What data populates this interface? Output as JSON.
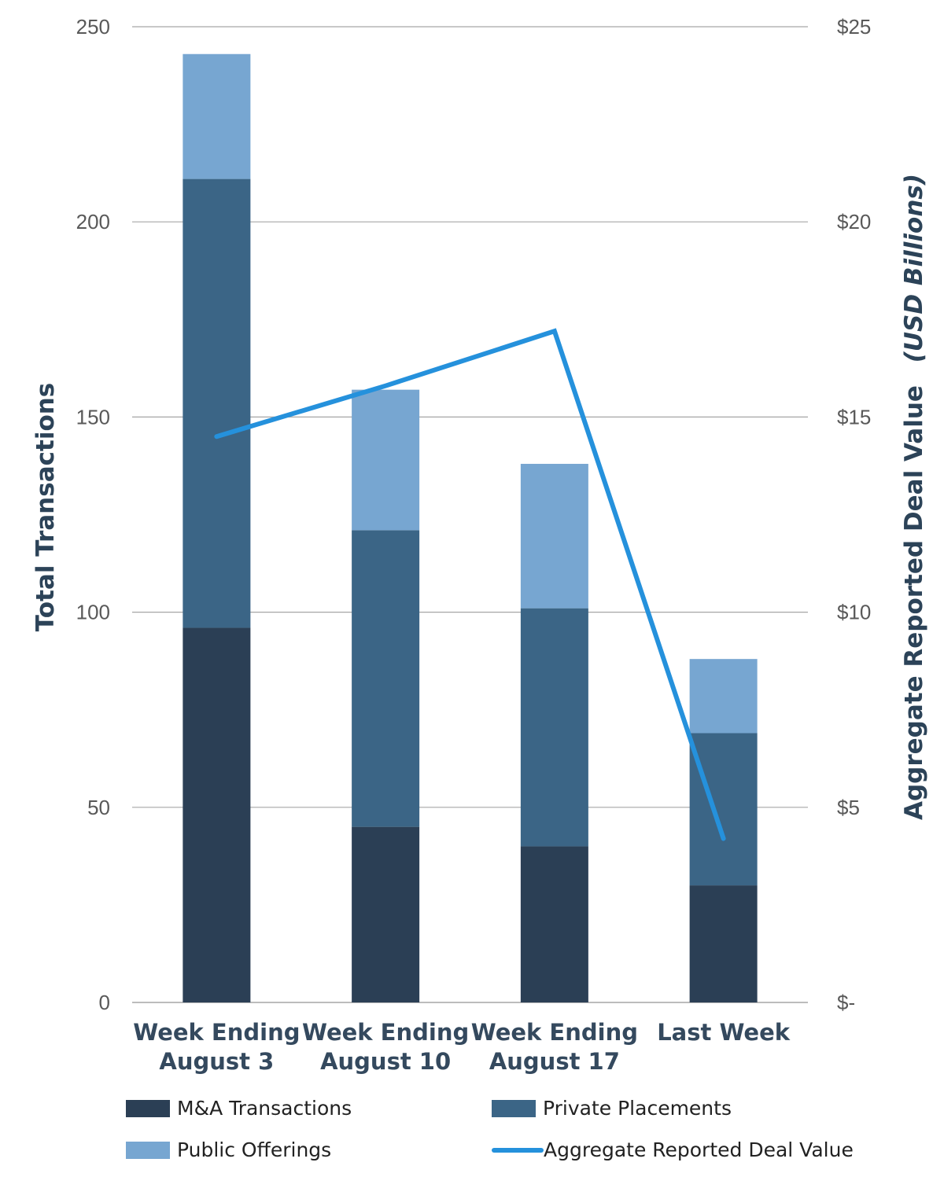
{
  "chart_data": {
    "type": "bar",
    "stacked": true,
    "categories": [
      [
        "Week Ending",
        "August 3"
      ],
      [
        "Week Ending",
        "August 10"
      ],
      [
        "Week Ending",
        "August 17"
      ],
      [
        "Last Week"
      ]
    ],
    "series": [
      {
        "name": "M&A Transactions",
        "type": "bar",
        "axis": "left",
        "color": "#2b3f55",
        "values": [
          96,
          45,
          40,
          30
        ]
      },
      {
        "name": "Private Placements",
        "type": "bar",
        "axis": "left",
        "color": "#3b6586",
        "values": [
          115,
          76,
          61,
          39
        ]
      },
      {
        "name": "Public Offerings",
        "type": "bar",
        "axis": "left",
        "color": "#77a6d1",
        "values": [
          32,
          36,
          37,
          19
        ]
      },
      {
        "name": "Aggregate Reported Deal Value",
        "type": "line",
        "axis": "right",
        "color": "#2591dc",
        "values": [
          14.5,
          15.8,
          17.2,
          4.2
        ]
      }
    ],
    "ylabel": "Total Transactions",
    "y2label": "Aggregate Reported Deal Value",
    "y2label_suffix": "(USD Billions)",
    "ylim": [
      0,
      250
    ],
    "y2lim": [
      0,
      25
    ],
    "yticks": [
      0,
      50,
      100,
      150,
      200,
      250
    ],
    "y2ticks": [
      "$-",
      "$5",
      "$10",
      "$15",
      "$20",
      "$25"
    ],
    "grid": true,
    "legend_position": "bottom"
  }
}
